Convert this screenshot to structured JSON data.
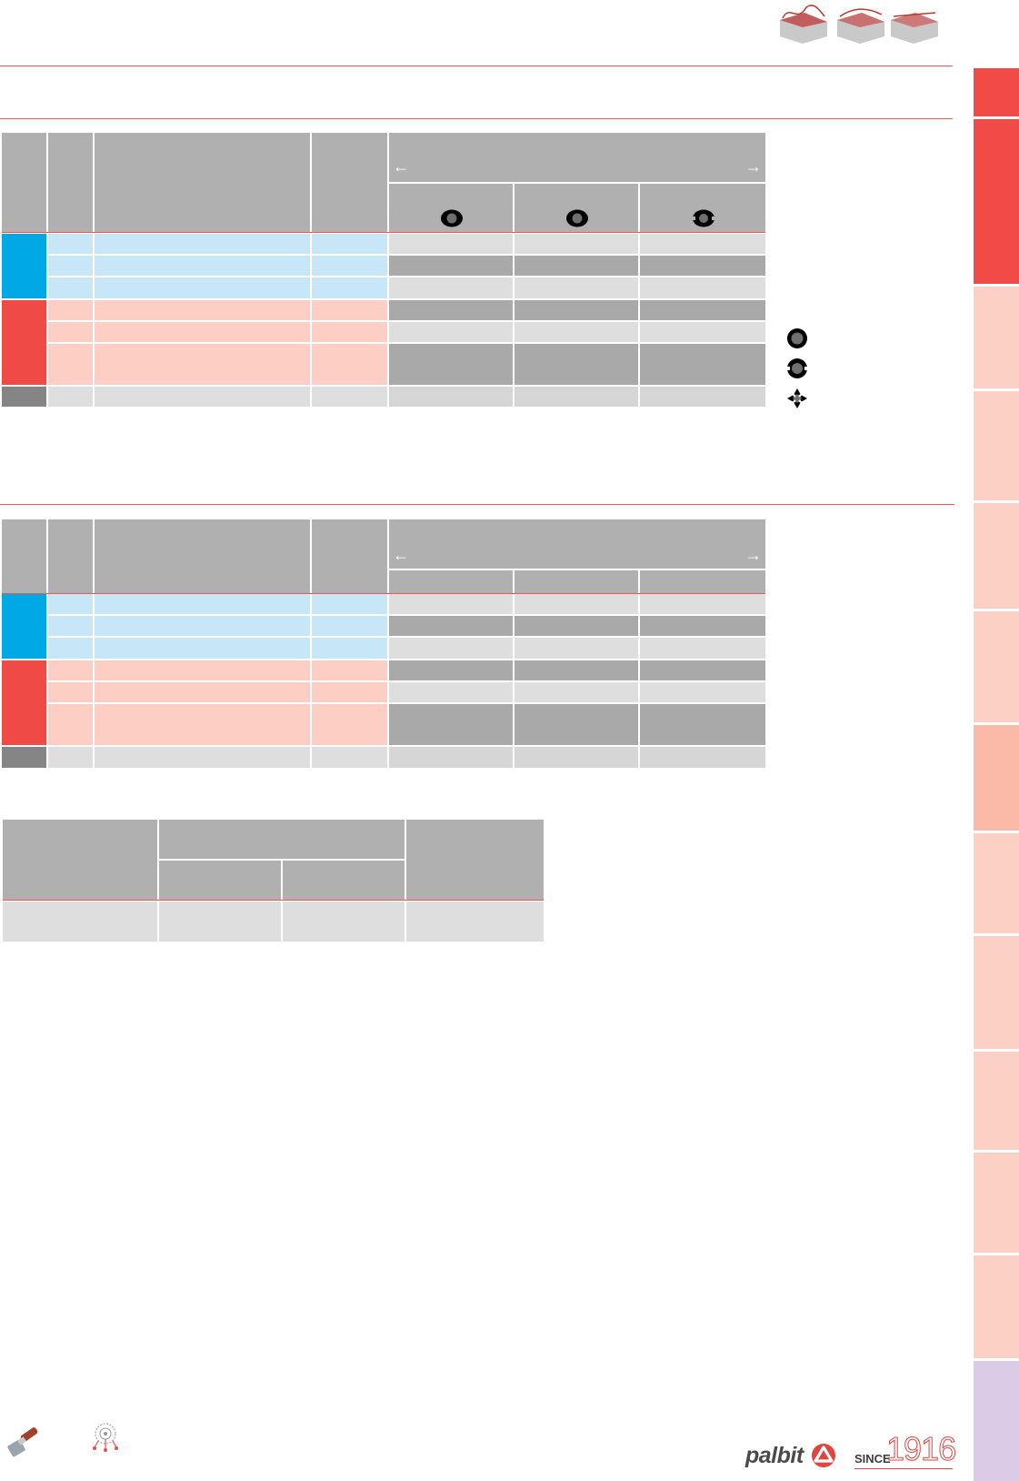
{
  "header": {
    "workpiece_icons": [
      "contour-workpiece-icon",
      "slope-workpiece-icon",
      "flat-workpiece-icon"
    ]
  },
  "table1": {
    "arrow_left": "←",
    "arrow_right": "→",
    "insert_icons": [
      "coolant-hole-center-icon",
      "coolant-hole-center-icon",
      "coolant-hole-side-icon"
    ]
  },
  "table2": {
    "arrow_left": "←",
    "arrow_right": "→"
  },
  "legend": {
    "icons": [
      "coolant-center-icon",
      "coolant-side-icon",
      "coolant-cross-icon"
    ]
  },
  "footer": {
    "brand": "palbit",
    "since_label": "SINCE",
    "since_year": "1916",
    "colors": {
      "accent_red": "#f04a46",
      "blue": "#00a9e6"
    }
  }
}
